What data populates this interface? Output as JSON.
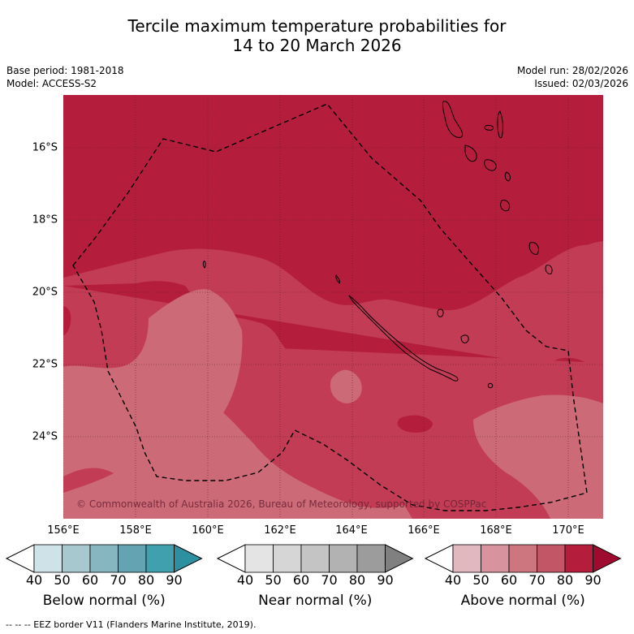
{
  "title": {
    "line1": "Tercile maximum temperature probabilities for",
    "line2": "14 to 20 March 2026"
  },
  "meta": {
    "base_period": "Base period: 1981-2018",
    "model": "Model: ACCESS-S2",
    "model_run": "Model run: 28/02/2026",
    "issued": "Issued: 02/03/2026"
  },
  "map": {
    "lat_labels": [
      "16°S",
      "18°S",
      "20°S",
      "22°S",
      "24°S"
    ],
    "lon_labels": [
      "156°E",
      "158°E",
      "160°E",
      "162°E",
      "164°E",
      "166°E",
      "168°E",
      "170°E"
    ],
    "copyright": "© Commonwealth of Australia 2026, Bureau of Meteorology, supported by COSPPac",
    "region_probabilities_above_normal": {
      "north": 80,
      "central_band": 70,
      "southwest_patches": 60
    }
  },
  "legends": [
    {
      "label": "Below normal (%)",
      "ticks": [
        "40",
        "50",
        "60",
        "70",
        "80",
        "90"
      ],
      "colors": [
        "#ffffff",
        "#cde3e8",
        "#a8c8cf",
        "#86b6c0",
        "#64a3b1",
        "#41a0ae",
        "#2e8fa0"
      ]
    },
    {
      "label": "Near normal (%)",
      "ticks": [
        "40",
        "50",
        "60",
        "70",
        "80",
        "90"
      ],
      "colors": [
        "#ffffff",
        "#e4e4e4",
        "#d6d6d6",
        "#c4c4c4",
        "#b2b2b2",
        "#9c9c9c",
        "#808080"
      ]
    },
    {
      "label": "Above normal (%)",
      "ticks": [
        "40",
        "50",
        "60",
        "70",
        "80",
        "90"
      ],
      "colors": [
        "#ffffff",
        "#e2b8bf",
        "#d8949e",
        "#cd7680",
        "#c25566",
        "#b41e3c",
        "#9e0b2e"
      ]
    }
  ],
  "footnote": "-- -- -- EEZ border V11 (Flanders Marine Institute, 2019)."
}
